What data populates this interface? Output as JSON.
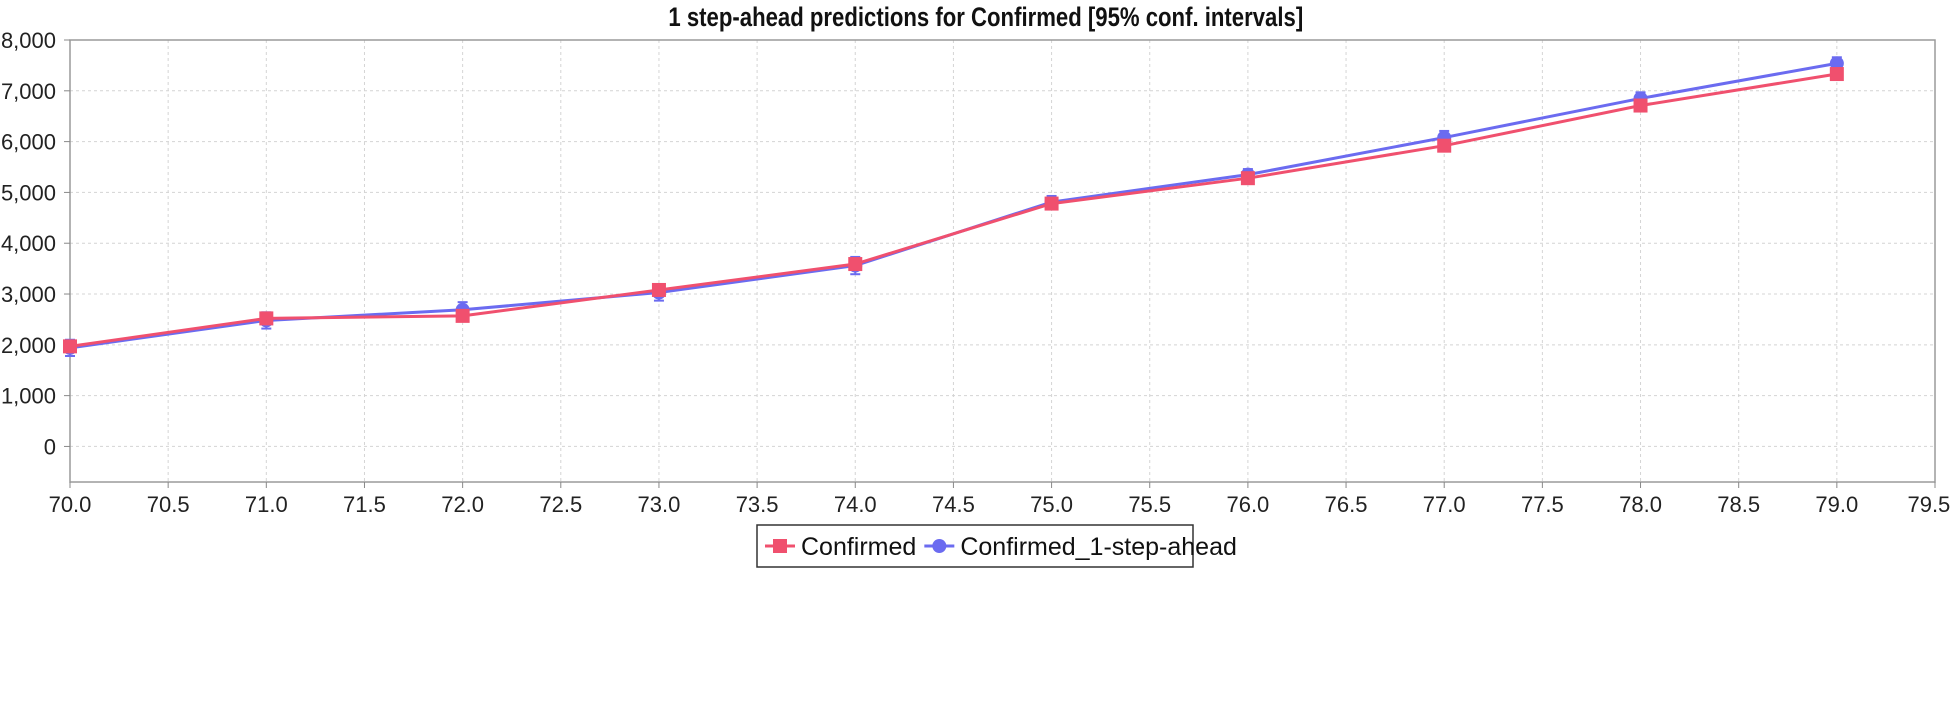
{
  "chart_data": {
    "type": "line",
    "title": "1 step-ahead predictions for Confirmed [95% conf. intervals]",
    "xlabel": "",
    "ylabel": "",
    "x": [
      70,
      71,
      72,
      73,
      74,
      75,
      76,
      77,
      78,
      79
    ],
    "xlim": [
      70,
      79.5
    ],
    "ylim": [
      -700,
      8000
    ],
    "x_ticks": [
      70.0,
      70.5,
      71.0,
      71.5,
      72.0,
      72.5,
      73.0,
      73.5,
      74.0,
      74.5,
      75.0,
      75.5,
      76.0,
      76.5,
      77.0,
      77.5,
      78.0,
      78.5,
      79.0,
      79.5
    ],
    "x_tick_labels": [
      "70.0",
      "70.5",
      "71.0",
      "71.5",
      "72.0",
      "72.5",
      "73.0",
      "73.5",
      "74.0",
      "74.5",
      "75.0",
      "75.5",
      "76.0",
      "76.5",
      "77.0",
      "77.5",
      "78.0",
      "78.5",
      "79.0",
      "79.50"
    ],
    "y_ticks": [
      0,
      1000,
      2000,
      3000,
      4000,
      5000,
      6000,
      7000,
      8000
    ],
    "y_tick_labels": [
      "0",
      "1,000",
      "2,000",
      "3,000",
      "4,000",
      "5,000",
      "6,000",
      "7,000",
      "8,000"
    ],
    "grid": true,
    "legend_position": "bottom",
    "series": [
      {
        "name": "Confirmed",
        "color": "#f0506e",
        "marker": "square",
        "values": [
          1970,
          2520,
          2570,
          3080,
          3590,
          4780,
          5280,
          5920,
          6710,
          7330
        ]
      },
      {
        "name": "Confirmed_1-step-ahead",
        "color": "#6b6bf0",
        "marker": "circle",
        "values": [
          1940,
          2480,
          2690,
          3030,
          3560,
          4810,
          5350,
          6080,
          6850,
          7540
        ],
        "ci_lower": [
          1780,
          2320,
          2540,
          2870,
          3390,
          4690,
          5240,
          5950,
          6730,
          7420
        ],
        "ci_upper": [
          2100,
          2640,
          2840,
          3190,
          3730,
          4930,
          5460,
          6210,
          6970,
          7660
        ]
      }
    ]
  }
}
